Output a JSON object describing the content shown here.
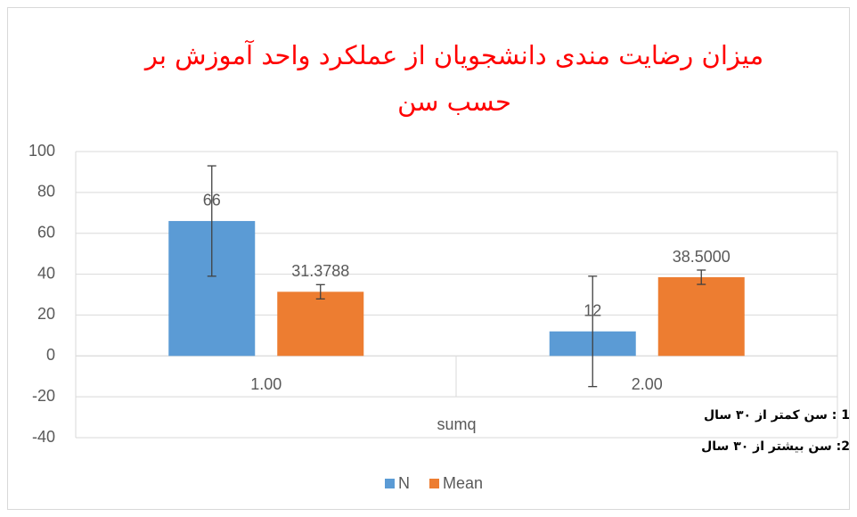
{
  "chart_data": {
    "type": "bar",
    "title": "میزان رضایت مندی دانشجویان از عملکرد واحد  آموزش بر حسب سن",
    "x_label": "sumq",
    "annotations": [
      "1 : سن کمتر از ۳۰ سال",
      "2: سن  بیشتر از ۳۰ سال"
    ],
    "categories": [
      "1.00",
      "2.00"
    ],
    "series": [
      {
        "name": "N",
        "color": "#5b9bd5",
        "values": [
          66,
          12
        ],
        "errors": [
          27,
          27
        ]
      },
      {
        "name": "Mean",
        "color": "#ed7d31",
        "values": [
          31.3788,
          38.5
        ],
        "value_labels": [
          "31.3788",
          "38.5000"
        ],
        "errors": [
          3.5,
          3.5
        ]
      }
    ],
    "ylim": [
      -40,
      100
    ],
    "yticks": [
      -40,
      -20,
      0,
      20,
      40,
      60,
      80,
      100
    ],
    "grid": true,
    "legend": "bottom"
  }
}
